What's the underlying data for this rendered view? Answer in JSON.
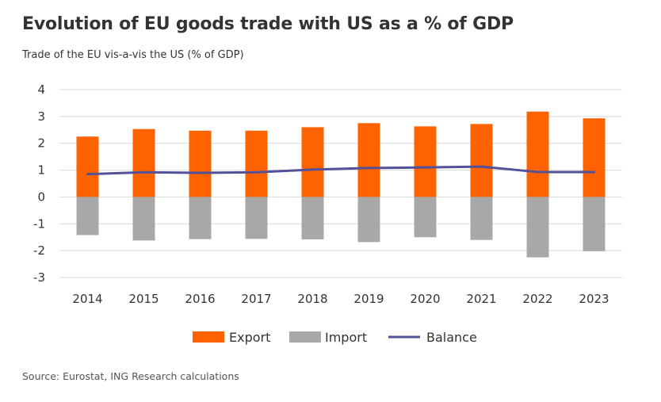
{
  "title": "Evolution of EU goods trade with US as a % of GDP",
  "subtitle": "Trade of the EU vis-a-vis the US (% of GDP)",
  "source": "Source: Eurostat, ING Research calculations",
  "chart_data": {
    "type": "bar",
    "categories": [
      "2014",
      "2015",
      "2016",
      "2017",
      "2018",
      "2019",
      "2020",
      "2021",
      "2022",
      "2023"
    ],
    "series": [
      {
        "name": "Export",
        "type": "bar",
        "color": "#FF6200",
        "values": [
          2.25,
          2.53,
          2.47,
          2.47,
          2.6,
          2.75,
          2.63,
          2.72,
          3.18,
          2.93
        ]
      },
      {
        "name": "Import",
        "type": "bar",
        "color": "#A8A8A8",
        "values": [
          -1.42,
          -1.62,
          -1.57,
          -1.56,
          -1.58,
          -1.68,
          -1.5,
          -1.6,
          -2.25,
          -2.02
        ]
      },
      {
        "name": "Balance",
        "type": "line",
        "color": "#525199",
        "values": [
          0.85,
          0.92,
          0.9,
          0.92,
          1.02,
          1.08,
          1.1,
          1.13,
          0.93,
          0.93
        ]
      }
    ],
    "y_ticks": [
      "4",
      "3",
      "2",
      "1",
      "0",
      "-1",
      "-2",
      "-3"
    ],
    "ylim": [
      -3,
      4
    ],
    "grid": true,
    "legend_position": "bottom"
  }
}
